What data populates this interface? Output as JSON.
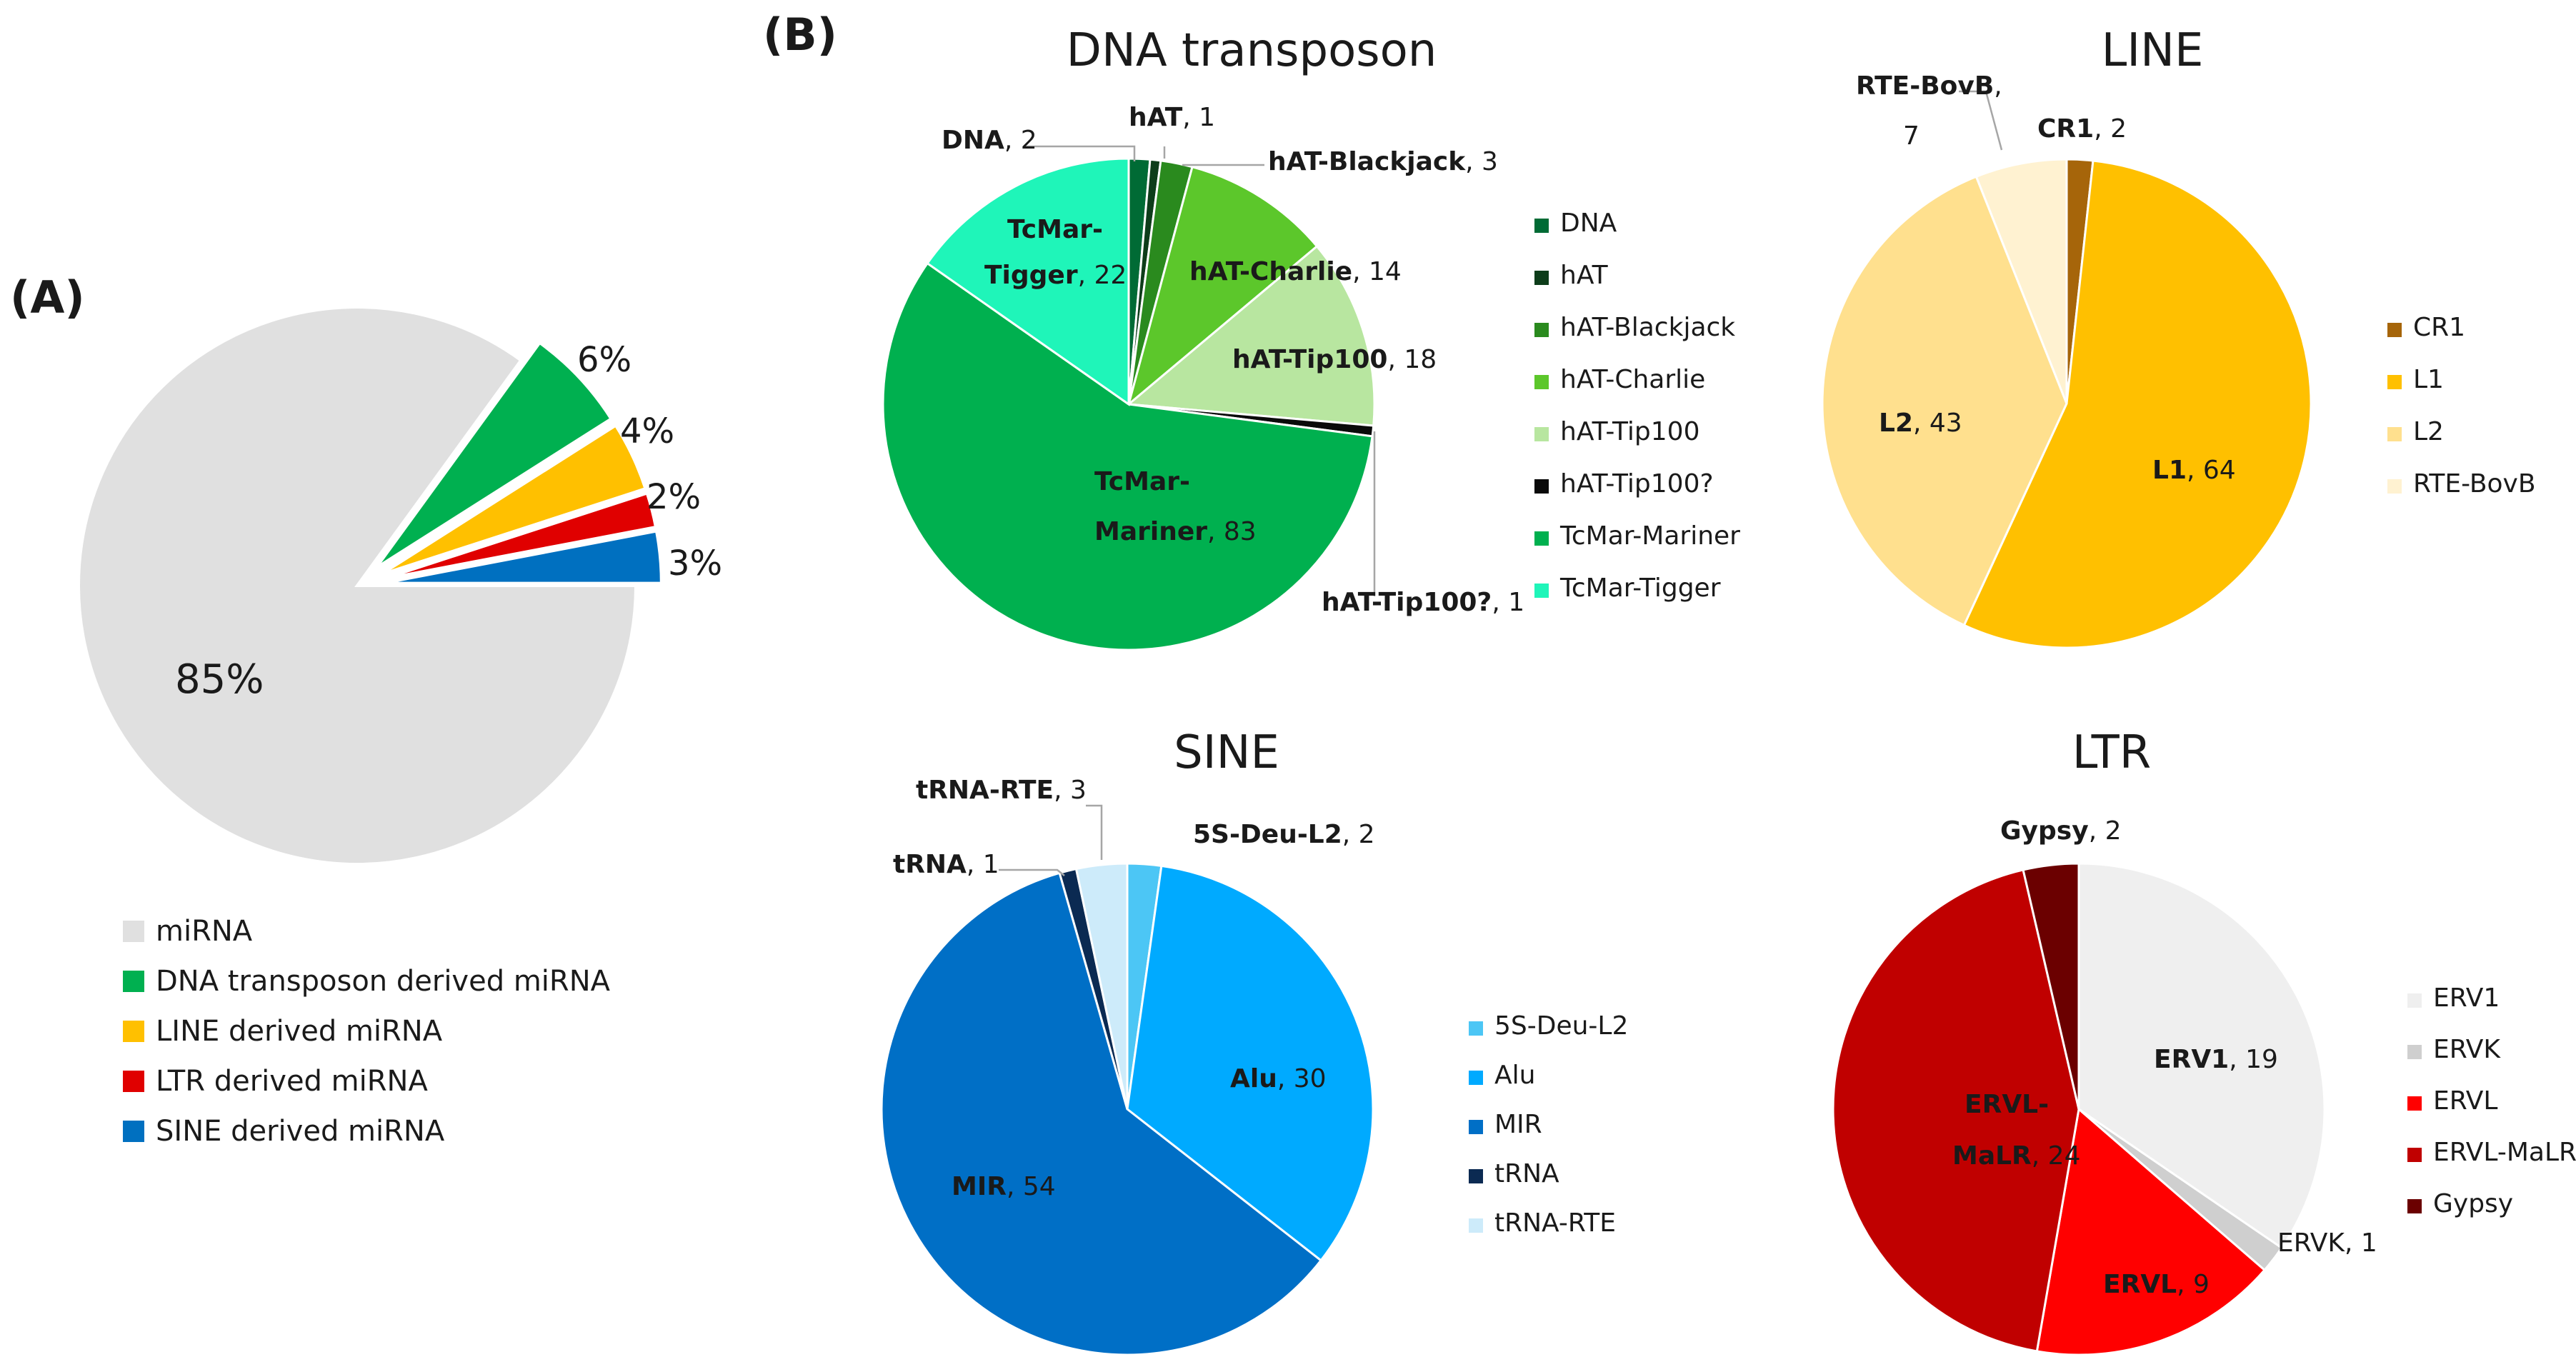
{
  "panel_labels": {
    "a": "(A)",
    "b": "(B)"
  },
  "chart_data": [
    {
      "id": "A",
      "type": "pie",
      "title": "",
      "exploded": true,
      "legend_position": "bottom",
      "slices": [
        {
          "name": "miRNA",
          "value": 85,
          "label": "85%",
          "color": "#e0e0e0",
          "explode": false
        },
        {
          "name": "DNA transposon derived miRNA",
          "value": 6,
          "label": "6%",
          "color": "#00b050",
          "explode": true
        },
        {
          "name": "LINE derived miRNA",
          "value": 4,
          "label": "4%",
          "color": "#ffc000",
          "explode": true
        },
        {
          "name": "LTR derived miRNA",
          "value": 2,
          "label": "2%",
          "color": "#e00000",
          "explode": true
        },
        {
          "name": "SINE derived miRNA",
          "value": 3,
          "label": "3%",
          "color": "#0070c0",
          "explode": true
        }
      ]
    },
    {
      "id": "B-DNA",
      "type": "pie",
      "title": "DNA transposon",
      "legend_position": "right",
      "slices": [
        {
          "name": "DNA",
          "value": 2,
          "color": "#006b35"
        },
        {
          "name": "hAT",
          "value": 1,
          "color": "#0d3d1a"
        },
        {
          "name": "hAT-Blackjack",
          "value": 3,
          "color": "#2a8a1e"
        },
        {
          "name": "hAT-Charlie",
          "value": 14,
          "color": "#5cc72b"
        },
        {
          "name": "hAT-Tip100",
          "value": 18,
          "color": "#b8e6a0"
        },
        {
          "name": "hAT-Tip100?",
          "value": 1,
          "color": "#0a0a0a"
        },
        {
          "name": "TcMar-Mariner",
          "value": 83,
          "color": "#00b04f"
        },
        {
          "name": "TcMar-Tigger",
          "value": 22,
          "color": "#1ff5b9"
        }
      ]
    },
    {
      "id": "B-LINE",
      "type": "pie",
      "title": "LINE",
      "legend_position": "right",
      "slices": [
        {
          "name": "CR1",
          "value": 2,
          "color": "#a6650a"
        },
        {
          "name": "L1",
          "value": 64,
          "color": "#ffc000"
        },
        {
          "name": "L2",
          "value": 43,
          "color": "#ffe08e"
        },
        {
          "name": "RTE-BovB",
          "value": 7,
          "color": "#fff2d1"
        }
      ]
    },
    {
      "id": "B-SINE",
      "type": "pie",
      "title": "SINE",
      "legend_position": "right",
      "slices": [
        {
          "name": "5S-Deu-L2",
          "value": 2,
          "color": "#4cc6f5"
        },
        {
          "name": "Alu",
          "value": 30,
          "color": "#00aaff"
        },
        {
          "name": "MIR",
          "value": 54,
          "color": "#006fc6"
        },
        {
          "name": "tRNA",
          "value": 1,
          "color": "#0b2a52"
        },
        {
          "name": "tRNA-RTE",
          "value": 3,
          "color": "#cdebfa"
        }
      ]
    },
    {
      "id": "B-LTR",
      "type": "pie",
      "title": "LTR",
      "legend_position": "right",
      "slices": [
        {
          "name": "ERV1",
          "value": 19,
          "color": "#efefef"
        },
        {
          "name": "ERVK",
          "value": 1,
          "color": "#cfcfcf"
        },
        {
          "name": "ERVL",
          "value": 9,
          "color": "#ff0000"
        },
        {
          "name": "ERVL-MaLR",
          "value": 24,
          "color": "#c00000"
        },
        {
          "name": "Gypsy",
          "value": 2,
          "color": "#6b0000"
        }
      ]
    }
  ]
}
